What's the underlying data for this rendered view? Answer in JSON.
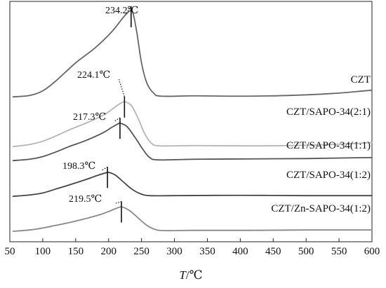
{
  "chart_data": {
    "type": "line",
    "title": "",
    "xlabel_var": "T",
    "xlabel_unit": "/℃",
    "ylabel": "",
    "xlim": [
      50,
      600
    ],
    "x_ticks": [
      50,
      100,
      150,
      200,
      250,
      300,
      350,
      400,
      450,
      500,
      550,
      600
    ],
    "grid": false,
    "y_ticks": false,
    "series": [
      {
        "name": "CZT",
        "color": "#666666",
        "peak_x": 234.2,
        "peak_label": "234.2℃",
        "points": [
          [
            55,
            4
          ],
          [
            80,
            6
          ],
          [
            100,
            13
          ],
          [
            120,
            28
          ],
          [
            150,
            55
          ],
          [
            180,
            78
          ],
          [
            205,
            102
          ],
          [
            222,
            123
          ],
          [
            232,
            133
          ],
          [
            237,
            130
          ],
          [
            243,
            100
          ],
          [
            250,
            55
          ],
          [
            258,
            25
          ],
          [
            268,
            10
          ],
          [
            280,
            5
          ],
          [
            330,
            5.5
          ],
          [
            400,
            5
          ],
          [
            470,
            6
          ],
          [
            540,
            9
          ],
          [
            600,
            14
          ]
        ]
      },
      {
        "name": "CZT/SAPO-34(2:1)",
        "color": "#b5b5b5",
        "peak_x": 224.1,
        "peak_label": "224.1℃",
        "points": [
          [
            55,
            3
          ],
          [
            80,
            6
          ],
          [
            100,
            11
          ],
          [
            120,
            19
          ],
          [
            140,
            28
          ],
          [
            170,
            40
          ],
          [
            195,
            52
          ],
          [
            212,
            64
          ],
          [
            220,
            69
          ],
          [
            226,
            70
          ],
          [
            235,
            64
          ],
          [
            245,
            45
          ],
          [
            255,
            22
          ],
          [
            265,
            8
          ],
          [
            278,
            4
          ],
          [
            330,
            4.5
          ],
          [
            420,
            4
          ],
          [
            500,
            5
          ],
          [
            560,
            7
          ],
          [
            600,
            9
          ]
        ]
      },
      {
        "name": "CZT/SAPO-34(1:1)",
        "color": "#555555",
        "peak_x": 217.3,
        "peak_label": "217.3℃",
        "points": [
          [
            55,
            3
          ],
          [
            80,
            5
          ],
          [
            100,
            9
          ],
          [
            120,
            16
          ],
          [
            140,
            24
          ],
          [
            165,
            33
          ],
          [
            190,
            44
          ],
          [
            205,
            53
          ],
          [
            214,
            58
          ],
          [
            218,
            59
          ],
          [
            228,
            54
          ],
          [
            240,
            38
          ],
          [
            252,
            20
          ],
          [
            262,
            8
          ],
          [
            275,
            4
          ],
          [
            330,
            5
          ],
          [
            420,
            5.5
          ],
          [
            500,
            6
          ],
          [
            560,
            7
          ],
          [
            600,
            7.5
          ]
        ]
      },
      {
        "name": "CZT/SAPO-34(1:2)",
        "color": "#444444",
        "peak_x": 198.3,
        "peak_label": "198.3℃",
        "points": [
          [
            55,
            3
          ],
          [
            80,
            5
          ],
          [
            100,
            8
          ],
          [
            120,
            14
          ],
          [
            140,
            20
          ],
          [
            165,
            28
          ],
          [
            185,
            35
          ],
          [
            195,
            38
          ],
          [
            200,
            39
          ],
          [
            210,
            35
          ],
          [
            222,
            25
          ],
          [
            235,
            14
          ],
          [
            248,
            7
          ],
          [
            262,
            4
          ],
          [
            300,
            4
          ],
          [
            400,
            4.5
          ],
          [
            500,
            4
          ],
          [
            560,
            4
          ],
          [
            600,
            4
          ]
        ]
      },
      {
        "name": "CZT/Zn-SAPO-34(1:2)",
        "color": "#888888",
        "peak_x": 219.5,
        "peak_label": "219.5℃",
        "points": [
          [
            55,
            2
          ],
          [
            80,
            4
          ],
          [
            100,
            7
          ],
          [
            120,
            11
          ],
          [
            140,
            15
          ],
          [
            165,
            21
          ],
          [
            190,
            28
          ],
          [
            208,
            35
          ],
          [
            216,
            38
          ],
          [
            221,
            38.5
          ],
          [
            232,
            33
          ],
          [
            245,
            22
          ],
          [
            258,
            11
          ],
          [
            270,
            5
          ],
          [
            285,
            3
          ],
          [
            330,
            3.5
          ],
          [
            420,
            3.5
          ],
          [
            500,
            4
          ],
          [
            560,
            4
          ],
          [
            600,
            4
          ]
        ]
      }
    ]
  }
}
